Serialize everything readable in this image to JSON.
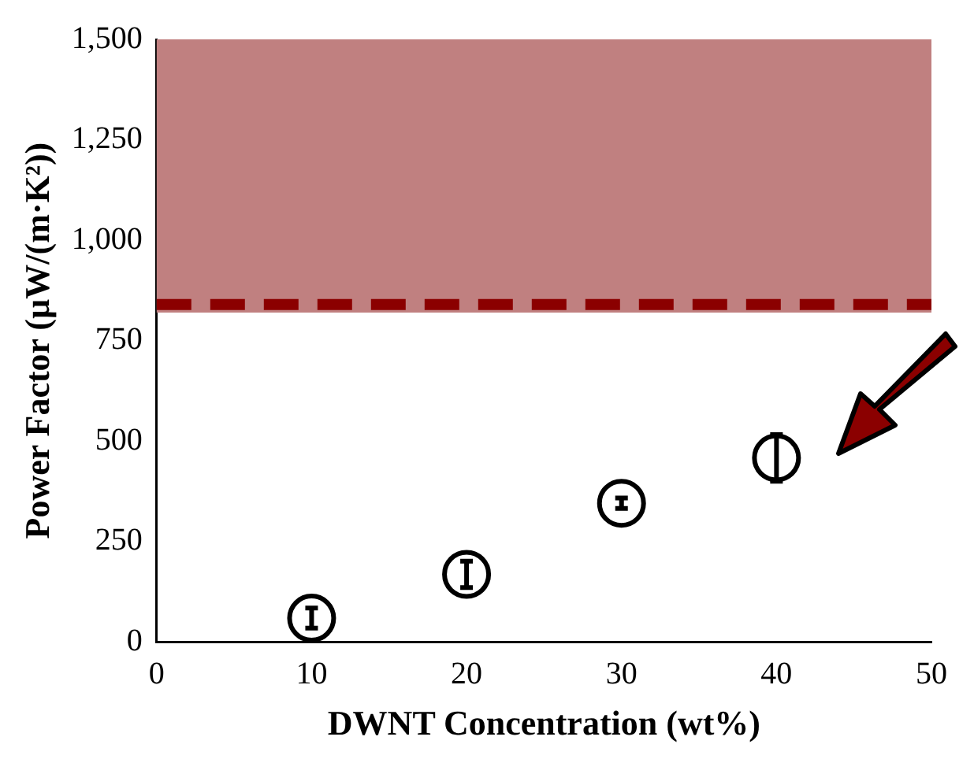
{
  "chart_data": {
    "type": "scatter",
    "xlabel": "DWNT Concentration (wt%)",
    "ylabel": "Power Factor (µW/(m·K²))",
    "x": [
      10,
      20,
      30,
      40
    ],
    "series": [
      {
        "color": "#000000",
        "values": [
          59,
          168,
          345,
          458
        ],
        "errors": [
          25,
          33,
          13,
          58
        ]
      }
    ],
    "xlim": [
      0,
      50
    ],
    "xticks": [
      0,
      10,
      20,
      30,
      40,
      50
    ],
    "ylim": [
      0,
      1500
    ],
    "yticks": [
      0,
      250,
      500,
      750,
      {
        "value": 1000,
        "label": "1,000"
      },
      {
        "value": 1250,
        "label": "1,250"
      },
      {
        "value": 1500,
        "label": "1,500"
      }
    ],
    "bands": [
      {
        "axis": "y",
        "from": 820,
        "to": 1500,
        "color": "#c08080"
      }
    ],
    "ref_lines": [
      {
        "axis": "y",
        "value": 840,
        "color": "#8b0000",
        "line_style": "dashed"
      }
    ],
    "grid": false,
    "legend": false
  }
}
